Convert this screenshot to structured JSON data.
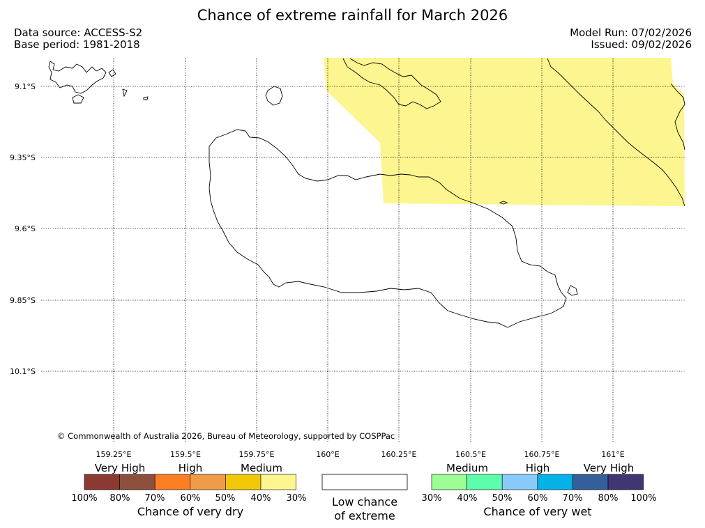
{
  "header": {
    "title": "Chance of extreme rainfall for March 2026",
    "data_source": "Data source: ACCESS-S2",
    "base_period": "Base period: 1981-2018",
    "model_run": "Model Run: 07/02/2026",
    "issued": "Issued: 09/02/2026"
  },
  "map": {
    "lat_ticks": [
      "9.1°S",
      "9.35°S",
      "9.6°S",
      "9.85°S",
      "10.1°S"
    ],
    "lon_ticks": [
      "159.25°E",
      "159.5°E",
      "159.75°E",
      "160°E",
      "160.25°E",
      "160.5°E",
      "160.75°E",
      "161°E"
    ],
    "copyright": "© Commonwealth of Australia 2026, Bureau of Meteorology, supported by COSPPac",
    "shading_color": "#fdf58f",
    "coast_color": "#000000"
  },
  "legend": {
    "dry": {
      "categories": [
        "Very High",
        "High",
        "Medium"
      ],
      "colors": [
        "#8b3a33",
        "#8b4f3c",
        "#fc7f23",
        "#ee9c48",
        "#f0c808",
        "#fdf58f"
      ],
      "percent_labels": [
        "100%",
        "80%",
        "70%",
        "60%",
        "50%",
        "40%",
        "30%"
      ],
      "title": "Chance of very dry"
    },
    "low": {
      "title_line1": "Low chance",
      "title_line2": "of extreme",
      "color": "#ffffff"
    },
    "wet": {
      "categories": [
        "Medium",
        "High",
        "Very High"
      ],
      "colors": [
        "#9cfe94",
        "#5cfdab",
        "#88cbfa",
        "#06b1e8",
        "#355f9b",
        "#3f3672"
      ],
      "percent_labels": [
        "30%",
        "40%",
        "50%",
        "60%",
        "70%",
        "80%",
        "100%"
      ],
      "title": "Chance of very wet"
    }
  }
}
